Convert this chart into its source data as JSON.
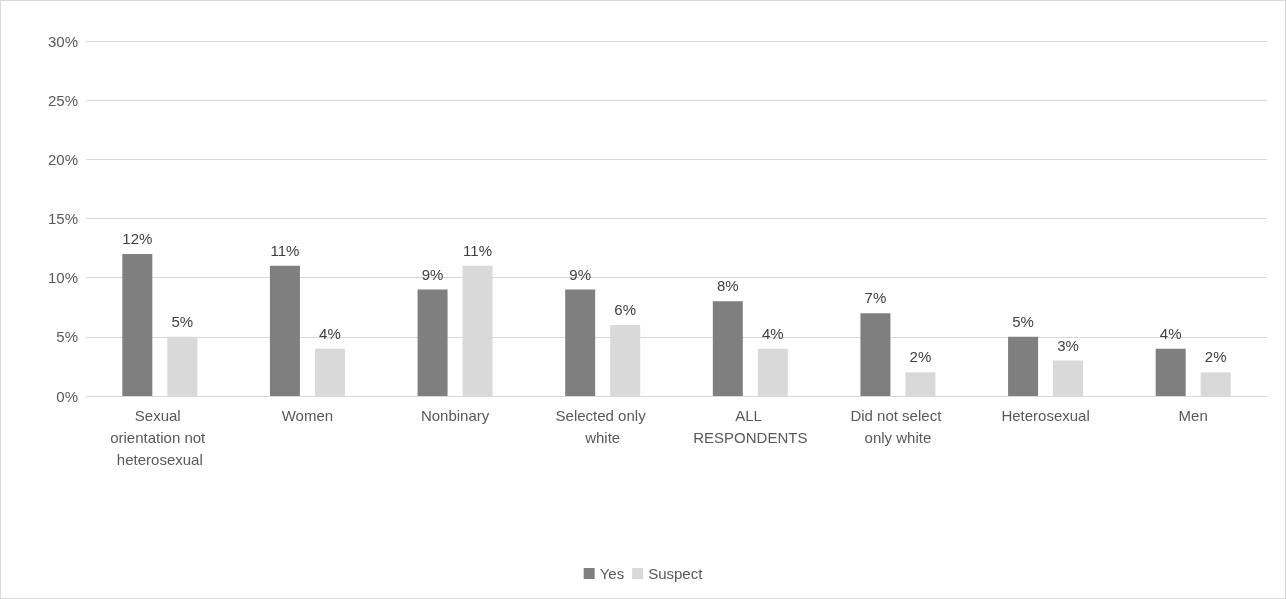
{
  "chart_data": {
    "type": "bar",
    "categories": [
      "Sexual orientation not heterosexual",
      "Women",
      "Nonbinary",
      "Selected only white",
      "ALL RESPONDENTS",
      "Did not select only white",
      "Heterosexual",
      "Men"
    ],
    "series": [
      {
        "name": "Yes",
        "color": "#7f7f7f",
        "values": [
          12,
          11,
          9,
          9,
          8,
          7,
          5,
          4
        ],
        "value_labels": [
          "12%",
          "11%",
          "9%",
          "9%",
          "8%",
          "7%",
          "5%",
          "4%"
        ]
      },
      {
        "name": "Suspect",
        "color": "#d9d9d9",
        "values": [
          5,
          4,
          11,
          6,
          4,
          2,
          3,
          2
        ],
        "value_labels": [
          "5%",
          "4%",
          "11%",
          "6%",
          "4%",
          "2%",
          "3%",
          "2%"
        ]
      }
    ],
    "ylim": [
      0,
      30
    ],
    "yticks": [
      {
        "value": 0,
        "label": "0%"
      },
      {
        "value": 5,
        "label": "5%"
      },
      {
        "value": 10,
        "label": "10%"
      },
      {
        "value": 15,
        "label": "15%"
      },
      {
        "value": 20,
        "label": "20%"
      },
      {
        "value": 25,
        "label": "25%"
      },
      {
        "value": 30,
        "label": "30%"
      }
    ],
    "grid": "y",
    "legend": "bottom"
  }
}
